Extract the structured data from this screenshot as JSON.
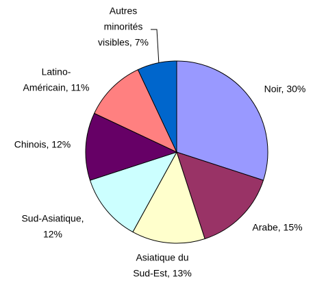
{
  "chart_data": {
    "type": "pie",
    "values": [
      30,
      15,
      13,
      12,
      12,
      11,
      7
    ],
    "value_labels": [
      [
        "Noir, 30%"
      ],
      [
        "Arabe, 15%"
      ],
      [
        "Asiatique du",
        "Sud-Est, 13%"
      ],
      [
        "Sud-Asiatique,",
        "12%"
      ],
      [
        "Chinois, 12%"
      ],
      [
        "Latino-",
        "Américain, 11%"
      ],
      [
        "Autres",
        "minorités",
        "visibles, 7%"
      ]
    ],
    "colors": [
      "#9999ff",
      "#993366",
      "#ffffcc",
      "#ccffff",
      "#660066",
      "#ff8080",
      "#0066cc"
    ]
  }
}
